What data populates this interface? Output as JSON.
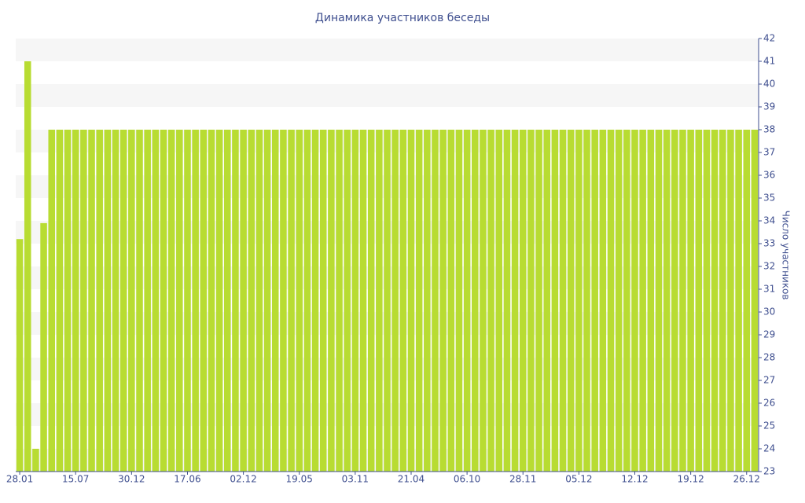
{
  "chart_data": {
    "type": "bar",
    "title": "Динамика участников беседы",
    "y_label": "Число участников",
    "categories": [
      "28.01",
      null,
      null,
      null,
      null,
      null,
      null,
      "15.07",
      null,
      null,
      null,
      null,
      null,
      null,
      "30.12",
      null,
      null,
      null,
      null,
      null,
      null,
      "17.06",
      null,
      null,
      null,
      null,
      null,
      null,
      "02.12",
      null,
      null,
      null,
      null,
      null,
      null,
      "19.05",
      null,
      null,
      null,
      null,
      null,
      null,
      "03.11",
      null,
      null,
      null,
      null,
      null,
      null,
      "21.04",
      null,
      null,
      null,
      null,
      null,
      null,
      "06.10",
      null,
      null,
      null,
      null,
      null,
      null,
      "28.11",
      null,
      null,
      null,
      null,
      null,
      null,
      "05.12",
      null,
      null,
      null,
      null,
      null,
      null,
      "12.12",
      null,
      null,
      null,
      null,
      null,
      null,
      "19.12",
      null,
      null,
      null,
      null,
      null,
      null,
      "26.12",
      null
    ],
    "values": [
      33.2,
      41,
      24,
      33.9,
      38,
      38,
      38,
      38,
      38,
      38,
      38,
      38,
      38,
      38,
      38,
      38,
      38,
      38,
      38,
      38,
      38,
      38,
      38,
      38,
      38,
      38,
      38,
      38,
      38,
      38,
      38,
      38,
      38,
      38,
      38,
      38,
      38,
      38,
      38,
      38,
      38,
      38,
      38,
      38,
      38,
      38,
      38,
      38,
      38,
      38,
      38,
      38,
      38,
      38,
      38,
      38,
      38,
      38,
      38,
      38,
      38,
      38,
      38,
      38,
      38,
      38,
      38,
      38,
      38,
      38,
      38,
      38,
      38,
      38,
      38,
      38,
      38,
      38,
      38,
      38,
      38,
      38,
      38,
      38,
      38,
      38,
      38,
      38,
      38,
      38,
      38,
      38,
      38
    ],
    "color": "#b8dc32",
    "ylim": [
      23,
      42
    ],
    "yticks": [
      23,
      24,
      25,
      26,
      27,
      28,
      29,
      30,
      31,
      32,
      33,
      34,
      35,
      36,
      37,
      38,
      39,
      40,
      41,
      42
    ],
    "grid": "bands",
    "y_axis_side": "right"
  }
}
